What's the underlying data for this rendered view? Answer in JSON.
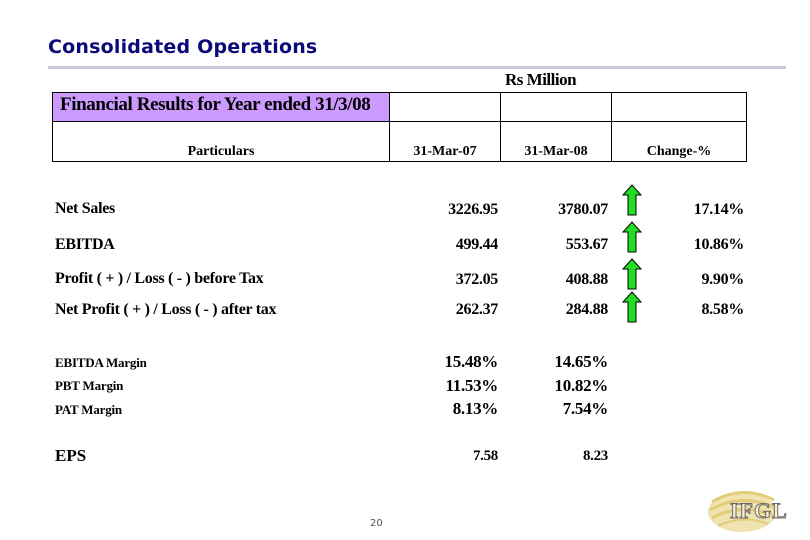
{
  "slide": {
    "title": "Consolidated Operations",
    "units": "Rs Million",
    "page_number": "20"
  },
  "table": {
    "caption": "Financial Results for Year ended 31/3/08",
    "caption_color": "#cc99ff",
    "headers": {
      "particulars": "Particulars",
      "col1": "31-Mar-07",
      "col2": "31-Mar-08",
      "change": "Change-%"
    },
    "rows": [
      {
        "label": "Net Sales",
        "v07": "3226.95",
        "v08": "3780.07",
        "change": "17.14%",
        "trend": "up"
      },
      {
        "label": "EBITDA",
        "v07": "499.44",
        "v08": "553.67",
        "change": "10.86%",
        "trend": "up"
      },
      {
        "label": "Profit ( + ) / Loss ( - ) before Tax",
        "v07": "372.05",
        "v08": "408.88",
        "change": "9.90%",
        "trend": "up"
      },
      {
        "label": "Net Profit ( + ) /  Loss ( - ) after tax",
        "v07": "262.37",
        "v08": "284.88",
        "change": "8.58%",
        "trend": "up"
      }
    ],
    "margins": [
      {
        "label": "EBITDA  Margin",
        "v07": "15.48%",
        "v08": "14.65%"
      },
      {
        "label": "PBT Margin",
        "v07": "11.53%",
        "v08": "10.82%"
      },
      {
        "label": "PAT Margin",
        "v07": "8.13%",
        "v08": "7.54%"
      }
    ],
    "eps": {
      "label": "EPS",
      "v07": "7.58",
      "v08": "8.23"
    },
    "arrow_color": "#22dd22"
  },
  "logo": {
    "text": "IFGL"
  }
}
